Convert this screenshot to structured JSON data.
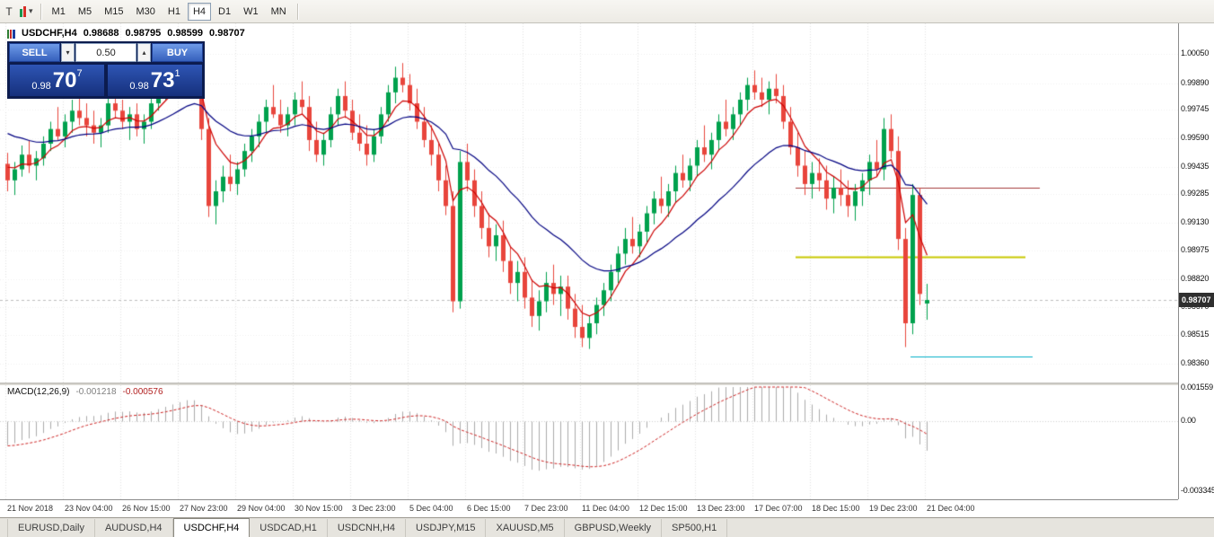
{
  "icons": {
    "down_arrow": "▾",
    "up_arrow": "▴"
  },
  "toolbar": {
    "icons": [
      {
        "name": "text-tool-icon",
        "glyph": "T"
      },
      {
        "name": "chart-objects-icon",
        "glyph": "▾"
      }
    ],
    "timeframes": [
      "M1",
      "M5",
      "M15",
      "M30",
      "H1",
      "H4",
      "D1",
      "W1",
      "MN"
    ],
    "active_timeframe": "H4"
  },
  "symbol_info": {
    "symbol": "USDCHF,H4",
    "open": "0.98688",
    "high": "0.98795",
    "low": "0.98599",
    "close": "0.98707"
  },
  "one_click": {
    "sell_label": "SELL",
    "buy_label": "BUY",
    "volume": "0.50",
    "bid": {
      "prefix": "0.98",
      "big": "70",
      "sup": "7"
    },
    "ask": {
      "prefix": "0.98",
      "big": "73",
      "sup": "1"
    }
  },
  "macd_panel": {
    "name": "MACD(12,26,9)",
    "value_main": "-0.001218",
    "value_signal": "-0.000576",
    "axis": [
      "0.001559",
      "0.00",
      "-0.003345"
    ]
  },
  "tabs": {
    "items": [
      "EURUSD,Daily",
      "AUDUSD,H4",
      "USDCHF,H4",
      "USDCAD,H1",
      "USDCNH,H4",
      "USDJPY,M15",
      "XAUUSD,M5",
      "GBPUSD,Weekly",
      "SP500,H1"
    ],
    "active": "USDCHF,H4"
  },
  "chart_data": {
    "type": "candlestick",
    "symbol": "USDCHF",
    "timeframe": "H4",
    "price_axis": [
      "1.00050",
      "0.99890",
      "0.99745",
      "0.99590",
      "0.99435",
      "0.99285",
      "0.99130",
      "0.98975",
      "0.98820",
      "0.98670",
      "0.98515",
      "0.98360"
    ],
    "time_axis": [
      "21 Nov 2018",
      "23 Nov 04:00",
      "26 Nov 15:00",
      "27 Nov 23:00",
      "29 Nov 04:00",
      "30 Nov 15:00",
      "3 Dec 23:00",
      "5 Dec 04:00",
      "6 Dec 15:00",
      "7 Dec 23:00",
      "11 Dec 04:00",
      "12 Dec 15:00",
      "13 Dec 23:00",
      "17 Dec 07:00",
      "18 Dec 15:00",
      "19 Dec 23:00",
      "21 Dec 04:00"
    ],
    "current_price": "0.98707",
    "colors": {
      "bull": "#00A14D",
      "bear": "#E8453C",
      "ma_fast": "#CC0000",
      "ma_slow": "#000080",
      "macd_hist": "#ABABAB",
      "macd_signal": "#CC2222",
      "grid": "#E0E0E0"
    },
    "overlays": [
      {
        "name": "ma-fast",
        "type": "ema",
        "period": 6,
        "color": "#CC0000"
      },
      {
        "name": "ma-slow",
        "type": "ema",
        "period": 22,
        "color": "#000080"
      }
    ],
    "hlines": [
      {
        "price": 0.9932,
        "from_index": 110,
        "to_index": 144,
        "color": "#A33A3A",
        "width": 1
      },
      {
        "price": 0.98945,
        "from_index": 110,
        "to_index": 142,
        "color": "#C8C800",
        "width": 2
      },
      {
        "price": 0.984,
        "from_index": 126,
        "to_index": 143,
        "color": "#00AEC8",
        "width": 1
      }
    ],
    "macd": {
      "fast": 12,
      "slow": 26,
      "signal": 9
    },
    "candles": [
      [
        0.9945,
        0.9951,
        0.993,
        0.9936
      ],
      [
        0.9936,
        0.9946,
        0.9928,
        0.9942
      ],
      [
        0.9942,
        0.9955,
        0.9938,
        0.995
      ],
      [
        0.995,
        0.9958,
        0.994,
        0.9944
      ],
      [
        0.9944,
        0.9952,
        0.9936,
        0.9948
      ],
      [
        0.9948,
        0.996,
        0.9944,
        0.9956
      ],
      [
        0.9956,
        0.9968,
        0.9952,
        0.9964
      ],
      [
        0.9964,
        0.9976,
        0.9958,
        0.996
      ],
      [
        0.996,
        0.9972,
        0.9954,
        0.9968
      ],
      [
        0.9968,
        0.998,
        0.9962,
        0.9974
      ],
      [
        0.9974,
        0.9982,
        0.9966,
        0.997
      ],
      [
        0.997,
        0.9978,
        0.996,
        0.9966
      ],
      [
        0.9966,
        0.9974,
        0.9956,
        0.9962
      ],
      [
        0.9962,
        0.997,
        0.9954,
        0.9966
      ],
      [
        0.9966,
        0.9982,
        0.9962,
        0.9978
      ],
      [
        0.9978,
        0.9986,
        0.997,
        0.9974
      ],
      [
        0.9974,
        0.998,
        0.9964,
        0.9968
      ],
      [
        0.9968,
        0.9976,
        0.9958,
        0.9972
      ],
      [
        0.9972,
        0.9978,
        0.996,
        0.9964
      ],
      [
        0.9964,
        0.9972,
        0.9956,
        0.9968
      ],
      [
        0.9968,
        0.9982,
        0.9964,
        0.9978
      ],
      [
        0.9978,
        0.999,
        0.9974,
        0.9986
      ],
      [
        0.9986,
        0.9994,
        0.998,
        0.999
      ],
      [
        0.999,
        0.9998,
        0.9984,
        0.9994
      ],
      [
        0.9994,
        1.0002,
        0.9988,
        0.9998
      ],
      [
        0.9998,
        1.0005,
        0.9992,
        1.0
      ],
      [
        1.0,
        1.0004,
        0.9988,
        0.9992
      ],
      [
        0.9992,
        0.9998,
        0.9958,
        0.9964
      ],
      [
        0.9964,
        0.997,
        0.9916,
        0.9922
      ],
      [
        0.9922,
        0.9936,
        0.9912,
        0.993
      ],
      [
        0.993,
        0.9944,
        0.9924,
        0.9938
      ],
      [
        0.9938,
        0.995,
        0.993,
        0.9934
      ],
      [
        0.9934,
        0.9946,
        0.9928,
        0.9942
      ],
      [
        0.9942,
        0.9956,
        0.9938,
        0.9952
      ],
      [
        0.9952,
        0.9964,
        0.9946,
        0.996
      ],
      [
        0.996,
        0.9972,
        0.9954,
        0.9968
      ],
      [
        0.9968,
        0.998,
        0.9962,
        0.9976
      ],
      [
        0.9976,
        0.9988,
        0.997,
        0.9972
      ],
      [
        0.9972,
        0.998,
        0.9962,
        0.9966
      ],
      [
        0.9966,
        0.9976,
        0.996,
        0.9972
      ],
      [
        0.9972,
        0.9984,
        0.9966,
        0.998
      ],
      [
        0.998,
        0.999,
        0.9972,
        0.9976
      ],
      [
        0.9976,
        0.9982,
        0.9952,
        0.9958
      ],
      [
        0.9958,
        0.9968,
        0.9946,
        0.995
      ],
      [
        0.995,
        0.9962,
        0.9944,
        0.9958
      ],
      [
        0.9958,
        0.9976,
        0.9954,
        0.9972
      ],
      [
        0.9972,
        0.9986,
        0.9966,
        0.9982
      ],
      [
        0.9982,
        0.999,
        0.997,
        0.9974
      ],
      [
        0.9974,
        0.998,
        0.9958,
        0.9962
      ],
      [
        0.9962,
        0.9972,
        0.9952,
        0.9956
      ],
      [
        0.9956,
        0.9966,
        0.9944,
        0.995
      ],
      [
        0.995,
        0.9964,
        0.9946,
        0.996
      ],
      [
        0.996,
        0.9976,
        0.9956,
        0.9972
      ],
      [
        0.9972,
        0.9988,
        0.9968,
        0.9984
      ],
      [
        0.9984,
        0.9998,
        0.9978,
        0.9992
      ],
      [
        0.9992,
        1.0,
        0.9984,
        0.9988
      ],
      [
        0.9988,
        0.9994,
        0.9974,
        0.9978
      ],
      [
        0.9978,
        0.9986,
        0.9964,
        0.9968
      ],
      [
        0.9968,
        0.9976,
        0.9954,
        0.9958
      ],
      [
        0.9958,
        0.9966,
        0.9944,
        0.995
      ],
      [
        0.995,
        0.9956,
        0.993,
        0.9936
      ],
      [
        0.9936,
        0.9944,
        0.9917,
        0.9922
      ],
      [
        0.9922,
        0.993,
        0.9864,
        0.987
      ],
      [
        0.987,
        0.9952,
        0.9866,
        0.9946
      ],
      [
        0.9946,
        0.9956,
        0.993,
        0.9936
      ],
      [
        0.9936,
        0.9942,
        0.9916,
        0.9922
      ],
      [
        0.9922,
        0.993,
        0.9904,
        0.991
      ],
      [
        0.991,
        0.9918,
        0.9894,
        0.99
      ],
      [
        0.99,
        0.9912,
        0.9892,
        0.9906
      ],
      [
        0.9906,
        0.9914,
        0.9886,
        0.9892
      ],
      [
        0.9892,
        0.99,
        0.9874,
        0.988
      ],
      [
        0.988,
        0.9892,
        0.987,
        0.9886
      ],
      [
        0.9886,
        0.9894,
        0.9866,
        0.9872
      ],
      [
        0.9872,
        0.9882,
        0.9856,
        0.9862
      ],
      [
        0.9862,
        0.9876,
        0.9854,
        0.987
      ],
      [
        0.987,
        0.9886,
        0.9864,
        0.988
      ],
      [
        0.988,
        0.989,
        0.9868,
        0.9874
      ],
      [
        0.9874,
        0.9884,
        0.9862,
        0.9878
      ],
      [
        0.9878,
        0.9884,
        0.986,
        0.9866
      ],
      [
        0.9866,
        0.9874,
        0.985,
        0.9856
      ],
      [
        0.9856,
        0.9868,
        0.9845,
        0.985
      ],
      [
        0.985,
        0.9862,
        0.9844,
        0.9858
      ],
      [
        0.9858,
        0.9872,
        0.9852,
        0.9868
      ],
      [
        0.9868,
        0.988,
        0.9862,
        0.9876
      ],
      [
        0.9876,
        0.989,
        0.987,
        0.9886
      ],
      [
        0.9886,
        0.99,
        0.988,
        0.9896
      ],
      [
        0.9896,
        0.991,
        0.989,
        0.9904
      ],
      [
        0.9904,
        0.9916,
        0.9896,
        0.99
      ],
      [
        0.99,
        0.9912,
        0.9894,
        0.9908
      ],
      [
        0.9908,
        0.9922,
        0.9902,
        0.9918
      ],
      [
        0.9918,
        0.993,
        0.9912,
        0.9926
      ],
      [
        0.9926,
        0.9938,
        0.9918,
        0.9922
      ],
      [
        0.9922,
        0.9934,
        0.9916,
        0.993
      ],
      [
        0.993,
        0.9944,
        0.9924,
        0.994
      ],
      [
        0.994,
        0.995,
        0.9932,
        0.9936
      ],
      [
        0.9936,
        0.9948,
        0.993,
        0.9944
      ],
      [
        0.9944,
        0.9958,
        0.9938,
        0.9954
      ],
      [
        0.9954,
        0.9966,
        0.9946,
        0.995
      ],
      [
        0.995,
        0.9962,
        0.9942,
        0.9958
      ],
      [
        0.9958,
        0.9972,
        0.9952,
        0.9968
      ],
      [
        0.9968,
        0.998,
        0.996,
        0.9964
      ],
      [
        0.9964,
        0.9976,
        0.9958,
        0.9972
      ],
      [
        0.9972,
        0.9984,
        0.9966,
        0.998
      ],
      [
        0.998,
        0.9992,
        0.9974,
        0.9988
      ],
      [
        0.9988,
        0.9996,
        0.998,
        0.9984
      ],
      [
        0.9984,
        0.9992,
        0.9976,
        0.998
      ],
      [
        0.998,
        0.999,
        0.9972,
        0.9986
      ],
      [
        0.9986,
        0.9994,
        0.9978,
        0.9982
      ],
      [
        0.9982,
        0.9988,
        0.9964,
        0.9968
      ],
      [
        0.9968,
        0.9976,
        0.995,
        0.9954
      ],
      [
        0.9954,
        0.9962,
        0.9938,
        0.9944
      ],
      [
        0.9944,
        0.9952,
        0.9928,
        0.9934
      ],
      [
        0.9934,
        0.9946,
        0.9926,
        0.994
      ],
      [
        0.994,
        0.9948,
        0.993,
        0.9936
      ],
      [
        0.9936,
        0.9944,
        0.992,
        0.9926
      ],
      [
        0.9926,
        0.9938,
        0.9918,
        0.9932
      ],
      [
        0.9932,
        0.9942,
        0.9922,
        0.9928
      ],
      [
        0.9928,
        0.9936,
        0.9916,
        0.9922
      ],
      [
        0.9922,
        0.9934,
        0.9914,
        0.993
      ],
      [
        0.993,
        0.994,
        0.9922,
        0.9936
      ],
      [
        0.9936,
        0.995,
        0.9928,
        0.9946
      ],
      [
        0.9946,
        0.9958,
        0.9938,
        0.9942
      ],
      [
        0.9942,
        0.997,
        0.9936,
        0.9964
      ],
      [
        0.9964,
        0.9972,
        0.9948,
        0.9952
      ],
      [
        0.9952,
        0.996,
        0.9898,
        0.9904
      ],
      [
        0.9904,
        0.991,
        0.9845,
        0.9858
      ],
      [
        0.9858,
        0.9934,
        0.9852,
        0.9928
      ],
      [
        0.9928,
        0.9932,
        0.9868,
        0.9874
      ],
      [
        0.98688,
        0.98795,
        0.98599,
        0.98707
      ]
    ]
  }
}
